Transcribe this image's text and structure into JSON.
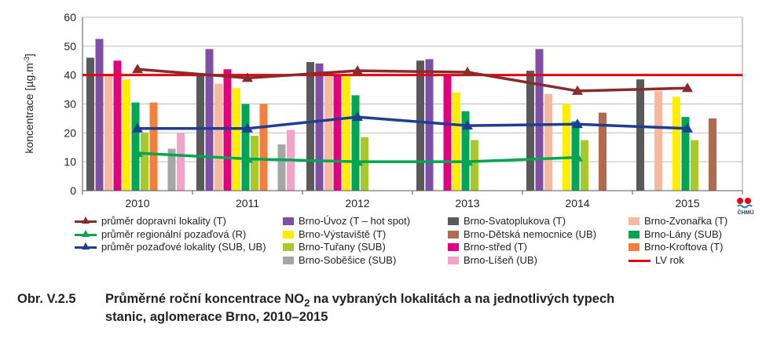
{
  "chart_data": {
    "type": "bar",
    "ylabel": "koncentrace [µg.m",
    "ylabel_sup": "-3",
    "ylabel_end": "]",
    "ylim": [
      0,
      60
    ],
    "yticks": [
      0,
      10,
      20,
      30,
      40,
      50,
      60
    ],
    "grid": "horizontal",
    "categories": [
      "2010",
      "2011",
      "2012",
      "2013",
      "2014",
      "2015"
    ],
    "bar_series": [
      {
        "name": "Brno-Svatoplukova (T)",
        "color": "#595959",
        "values": [
          46,
          40,
          44.5,
          45,
          41.5,
          38.5
        ]
      },
      {
        "name": "Brno-Úvoz (T – hot spot)",
        "color": "#7f4fa3",
        "values": [
          52.5,
          49,
          44,
          45.5,
          49,
          null
        ]
      },
      {
        "name": "Brno-Zvonařka (T)",
        "color": "#f6b9a0",
        "values": [
          40,
          37,
          39.5,
          null,
          33.5,
          34.5
        ]
      },
      {
        "name": "Brno-Střed (T)",
        "color": "#e3007e",
        "values": [
          45,
          42,
          40,
          40,
          null,
          null
        ]
      },
      {
        "name": "Brno-Výstaviště (T)",
        "color": "#ffee00",
        "values": [
          38.5,
          35.5,
          40,
          34,
          30,
          32.5
        ]
      },
      {
        "name": "Brno-Lány (SUB)",
        "color": "#00a651",
        "values": [
          30.5,
          30,
          33,
          27.5,
          24,
          25.5
        ]
      },
      {
        "name": "Brno-Tuřany (SUB)",
        "color": "#a8c82b",
        "values": [
          20,
          19,
          18.5,
          17.5,
          17.5,
          17.5
        ]
      },
      {
        "name": "Brno-Kroftova (T)",
        "color": "#f47e3c",
        "values": [
          30.5,
          30,
          null,
          null,
          null,
          null
        ]
      },
      {
        "name": "Brno-Dětská nemocnice (UB)",
        "color": "#b06a50",
        "values": [
          null,
          null,
          null,
          null,
          27,
          25
        ]
      },
      {
        "name": "Brno-Soběšice (SUB)",
        "color": "#a6a6a6",
        "values": [
          14.5,
          16,
          null,
          null,
          null,
          null
        ]
      },
      {
        "name": "Brno-Líšeň (UB)",
        "color": "#f4a3c8",
        "values": [
          20,
          21,
          null,
          null,
          null,
          null
        ]
      }
    ],
    "line_series": [
      {
        "name": "průměr dopravní lokality (T)",
        "color": "#8b2a2a",
        "values": [
          42,
          39,
          41.5,
          41,
          34.5,
          35.5
        ]
      },
      {
        "name": "průměr pozaďové lokality (SUB, UB)",
        "color": "#1f3e93",
        "values": [
          21.5,
          21.5,
          25.5,
          22.5,
          23,
          21.5
        ]
      },
      {
        "name": "průměr regionální pozaďová (R)",
        "color": "#00a651",
        "values": [
          13,
          11,
          10,
          10,
          11.5,
          null
        ]
      }
    ],
    "limit_line": {
      "name": "LV rok",
      "color": "#e30613",
      "value": 40
    }
  },
  "legend": {
    "col1": [
      {
        "label": "průměr dopravní lokality (T)",
        "color": "#8b2a2a"
      },
      {
        "label": "průměr regionální pozaďová (R)",
        "color": "#00a651"
      },
      {
        "label": "průměr pozaďové lokality (SUB, UB)",
        "color": "#1f3e93"
      }
    ],
    "col2": [
      {
        "label": "Brno-Úvoz (T – hot spot)",
        "color": "#7f4fa3"
      },
      {
        "label": "Brno-Výstaviště (T)",
        "color": "#ffee00"
      },
      {
        "label": "Brno-Tuřany (SUB)",
        "color": "#a8c82b"
      },
      {
        "label": "Brno-Soběšice (SUB)",
        "color": "#a6a6a6"
      }
    ],
    "col3": [
      {
        "label": "Brno-Svatoplukova (T)",
        "color": "#595959"
      },
      {
        "label": "Brno-Dětská nemocnice (UB)",
        "color": "#b06a50"
      },
      {
        "label": "Brno-střed (T)",
        "color": "#e3007e"
      },
      {
        "label": "Brno-Líšeň (UB)",
        "color": "#f4a3c8"
      }
    ],
    "col4": [
      {
        "label": "Brno-Zvonařka (T)",
        "color": "#f6b9a0"
      },
      {
        "label": "Brno-Lány (SUB)",
        "color": "#00a651"
      },
      {
        "label": "Brno-Kroftova (T)",
        "color": "#f47e3c"
      },
      {
        "label": "LV rok",
        "color": "#e30613"
      }
    ]
  },
  "caption": {
    "number": "Obr. V.2.5",
    "line1_a": "Průměrné roční koncentrace NO",
    "line1_sub": "2",
    "line1_b": " na vybraných lokalitách a na jednotlivých typech",
    "line2": "stanic, aglomerace Brno, 2010–2015"
  },
  "logo": {
    "text": "ČHMÚ",
    "icon": "chmu-logo-icon"
  }
}
